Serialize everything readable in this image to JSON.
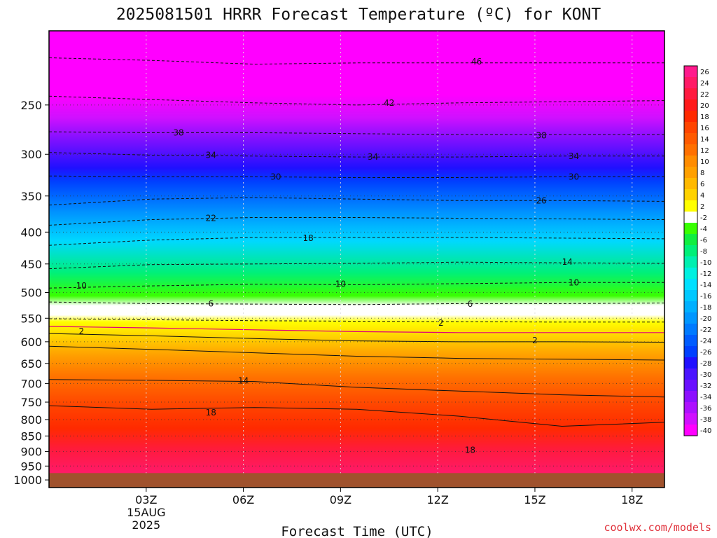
{
  "chart_data": {
    "type": "heatmap",
    "title": "2025081501 HRRR Forecast Temperature (ºC) for KONT",
    "xlabel": "Forecast Time (UTC)",
    "ylabel": "",
    "y_scale": "log",
    "y_inverted": true,
    "ylim": [
      1000,
      190
    ],
    "y_ticks": [
      250,
      300,
      350,
      400,
      450,
      500,
      550,
      600,
      650,
      700,
      750,
      800,
      850,
      900,
      950,
      1000
    ],
    "x_range_utc_hours": [
      0,
      19
    ],
    "x_ticks": [
      {
        "hour": 3,
        "label": "03Z",
        "sub": [
          "15AUG",
          "2025"
        ]
      },
      {
        "hour": 6,
        "label": "06Z",
        "sub": []
      },
      {
        "hour": 9,
        "label": "09Z",
        "sub": []
      },
      {
        "hour": 12,
        "label": "12Z",
        "sub": []
      },
      {
        "hour": 15,
        "label": "15Z",
        "sub": []
      },
      {
        "hour": 18,
        "label": "18Z",
        "sub": []
      }
    ],
    "grid": true,
    "surface_pressure": 975,
    "ground_color": "#a0522d",
    "colorbar": {
      "position": "right",
      "labels": [
        26,
        24,
        22,
        20,
        18,
        16,
        14,
        12,
        10,
        8,
        6,
        4,
        2,
        -2,
        -4,
        -6,
        -8,
        -10,
        -12,
        -14,
        -16,
        -18,
        -20,
        -22,
        -24,
        -26,
        -28,
        -30,
        -32,
        -34,
        -36,
        -38,
        -40
      ],
      "colors": [
        "#ff1a8c",
        "#ff1a66",
        "#ff1a40",
        "#ff1a1a",
        "#ff2a00",
        "#ff4500",
        "#ff5a00",
        "#ff7000",
        "#ff8c00",
        "#ffa000",
        "#ffb900",
        "#ffd200",
        "#ffff00",
        "#ffffff",
        "#39ff00",
        "#10ee40",
        "#00f078",
        "#00f0b0",
        "#00f0e0",
        "#00e0ff",
        "#00c8ff",
        "#00b0ff",
        "#0096ff",
        "#007aff",
        "#005cff",
        "#0040ff",
        "#2010ff",
        "#4a14ff",
        "#6a10ff",
        "#8c10ff",
        "#ad10ff",
        "#d010ff",
        "#ff00ff"
      ]
    },
    "isotherms": [
      {
        "value": -46,
        "style": "dashed",
        "p": [
          210,
          212,
          215,
          214,
          214,
          214,
          214
        ]
      },
      {
        "value": -42,
        "style": "dashed",
        "p": [
          242,
          245,
          248,
          250,
          248,
          247,
          246
        ]
      },
      {
        "value": -38,
        "style": "dashed",
        "p": [
          276,
          277,
          277,
          278,
          279,
          279,
          279
        ]
      },
      {
        "value": -34,
        "style": "dashed",
        "p": [
          298,
          301,
          302,
          303,
          303,
          302,
          302
        ]
      },
      {
        "value": -30,
        "style": "dashed",
        "p": [
          325,
          326,
          326,
          327,
          327,
          326,
          326
        ]
      },
      {
        "value": -26,
        "style": "dashed",
        "p": [
          362,
          354,
          352,
          354,
          356,
          356,
          357
        ]
      },
      {
        "value": -22,
        "style": "dashed",
        "p": [
          390,
          382,
          379,
          379,
          380,
          381,
          382
        ]
      },
      {
        "value": -18,
        "style": "dashed",
        "p": [
          420,
          412,
          408,
          408,
          408,
          409,
          410
        ]
      },
      {
        "value": -14,
        "style": "dashed",
        "p": [
          458,
          451,
          450,
          449,
          447,
          448,
          449
        ]
      },
      {
        "value": -10,
        "style": "dashed",
        "p": [
          492,
          488,
          485,
          486,
          484,
          482,
          482
        ]
      },
      {
        "value": -6,
        "style": "dashed",
        "p": [
          518,
          521,
          522,
          523,
          521,
          521,
          520
        ]
      },
      {
        "value": -2,
        "style": "dashed",
        "p": [
          551,
          553,
          555,
          556,
          557,
          558,
          558
        ]
      },
      {
        "value": 2,
        "style": "magenta",
        "p": [
          567,
          570,
          574,
          578,
          580,
          580,
          580
        ]
      },
      {
        "value": 6,
        "style": "solid",
        "p": [
          582,
          587,
          593,
          598,
          600,
          600,
          601
        ]
      },
      {
        "value": 10,
        "style": "solid",
        "p": [
          610,
          617,
          625,
          633,
          638,
          640,
          642
        ]
      },
      {
        "value": 14,
        "style": "solid",
        "p": [
          690,
          692,
          695,
          710,
          720,
          730,
          736
        ]
      },
      {
        "value": 18,
        "style": "solid",
        "p": [
          760,
          770,
          765,
          770,
          790,
          820,
          808
        ]
      }
    ],
    "contour_labels": [
      {
        "text": "46",
        "hour": 13.2,
        "p": 213
      },
      {
        "text": "42",
        "hour": 10.5,
        "p": 248
      },
      {
        "text": "38",
        "hour": 4.0,
        "p": 277
      },
      {
        "text": "38",
        "hour": 15.2,
        "p": 280
      },
      {
        "text": "34",
        "hour": 5.0,
        "p": 301
      },
      {
        "text": "34",
        "hour": 10.0,
        "p": 303
      },
      {
        "text": "34",
        "hour": 16.2,
        "p": 302
      },
      {
        "text": "30",
        "hour": 7.0,
        "p": 326
      },
      {
        "text": "30",
        "hour": 16.2,
        "p": 326
      },
      {
        "text": "26",
        "hour": 15.2,
        "p": 356
      },
      {
        "text": "22",
        "hour": 5.0,
        "p": 380
      },
      {
        "text": "18",
        "hour": 8.0,
        "p": 409
      },
      {
        "text": "14",
        "hour": 16.0,
        "p": 447
      },
      {
        "text": "10",
        "hour": 1.0,
        "p": 488
      },
      {
        "text": "10",
        "hour": 9.0,
        "p": 485
      },
      {
        "text": "10",
        "hour": 16.2,
        "p": 482
      },
      {
        "text": "6",
        "hour": 5.0,
        "p": 521
      },
      {
        "text": "6",
        "hour": 13.0,
        "p": 522
      },
      {
        "text": "2",
        "hour": 12.1,
        "p": 560
      },
      {
        "text": "2",
        "hour": 1.0,
        "p": 577
      },
      {
        "text": "2",
        "hour": 15.0,
        "p": 597
      },
      {
        "text": "14",
        "hour": 6.0,
        "p": 693
      },
      {
        "text": "18",
        "hour": 5.0,
        "p": 780
      },
      {
        "text": "18",
        "hour": 13.0,
        "p": 895
      }
    ]
  },
  "watermark": "coolwx.com/models"
}
